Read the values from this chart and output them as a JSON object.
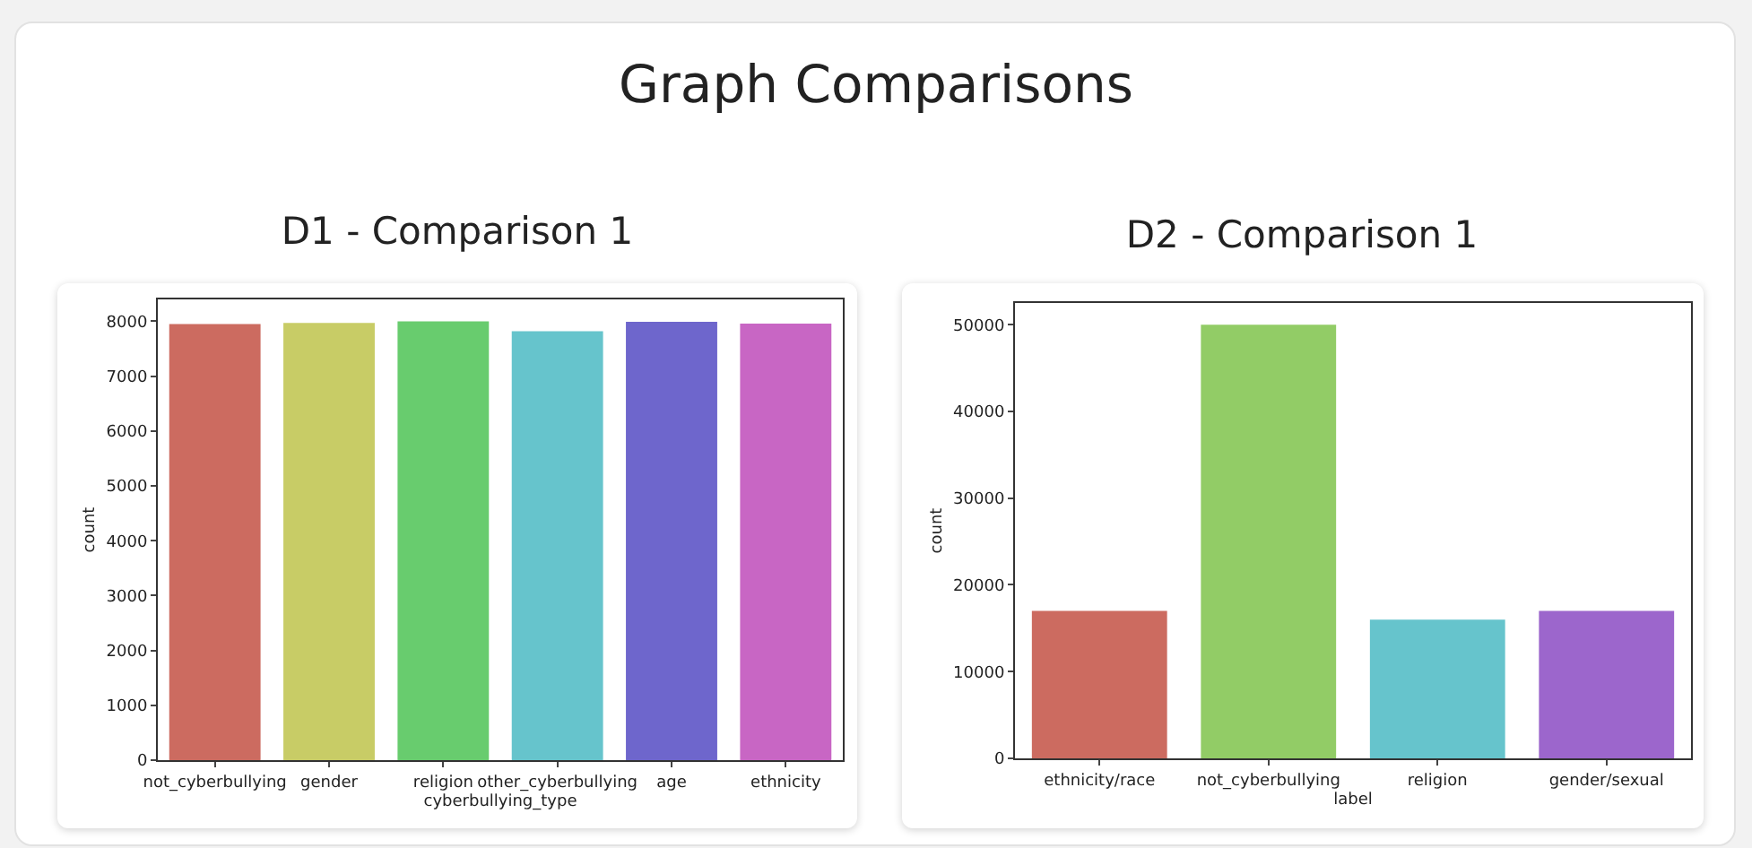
{
  "chart_data": [
    {
      "type": "other",
      "title": "Graph Comparisons"
    },
    {
      "type": "bar",
      "title": "D1 - Comparison 1",
      "xlabel": "cyberbullying_type",
      "ylabel": "count",
      "categories": [
        "not_cyberbullying",
        "gender",
        "religion",
        "other_cyberbullying",
        "age",
        "ethnicity"
      ],
      "values": [
        7950,
        7970,
        8000,
        7820,
        7990,
        7960
      ],
      "colors": [
        "#cc6b60",
        "#c8cc66",
        "#68cc6e",
        "#66c4cc",
        "#6e66cc",
        "#c866c4"
      ],
      "ylim": [
        0,
        8400
      ],
      "yticks": [
        0,
        1000,
        2000,
        3000,
        4000,
        5000,
        6000,
        7000,
        8000
      ],
      "grid": false
    },
    {
      "type": "bar",
      "title": "D2 - Comparison 1",
      "xlabel": "label",
      "ylabel": "count",
      "categories": [
        "ethnicity/race",
        "not_cyberbullying",
        "religion",
        "gender/sexual"
      ],
      "values": [
        17000,
        50000,
        16000,
        17000
      ],
      "colors": [
        "#cc6b60",
        "#92cc66",
        "#66c4cc",
        "#9c66cc"
      ],
      "ylim": [
        0,
        52500
      ],
      "yticks": [
        0,
        10000,
        20000,
        30000,
        40000,
        50000
      ],
      "grid": false
    }
  ]
}
